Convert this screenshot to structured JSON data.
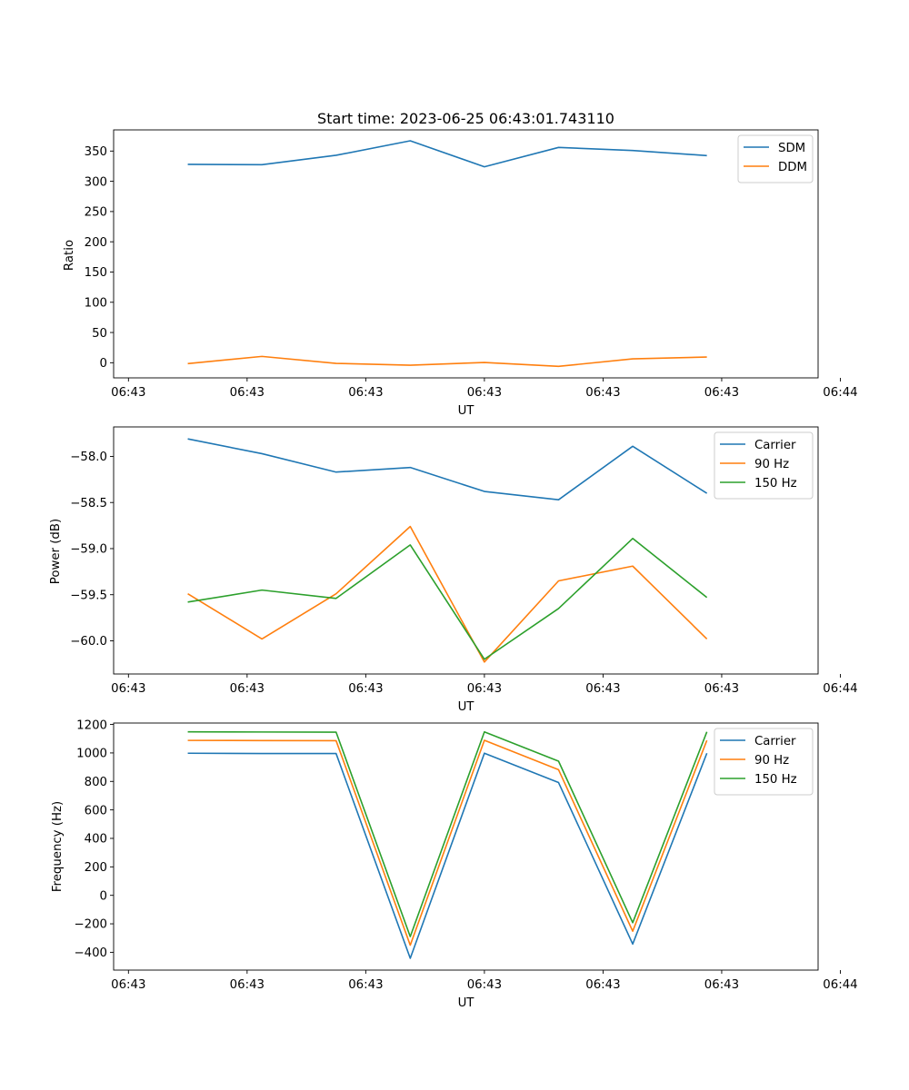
{
  "colors": {
    "blue": "#1f77b4",
    "orange": "#ff7f0e",
    "green": "#2ca02c"
  },
  "chart_data": [
    {
      "type": "line",
      "title": "Start time: 2023-06-25 06:43:01.743110",
      "xlabel": "UT",
      "ylabel": "Ratio",
      "x": [
        1,
        2,
        3,
        4,
        5,
        6,
        7,
        8
      ],
      "xlim": [
        0,
        9.5
      ],
      "xticks": [
        0.2,
        1.8,
        3.4,
        5.0,
        6.6,
        8.2,
        9.8
      ],
      "xtick_labels": [
        "06:43",
        "06:43",
        "06:43",
        "06:43",
        "06:43",
        "06:43",
        "06:44"
      ],
      "ylim": [
        -25,
        385
      ],
      "yticks": [
        0,
        50,
        100,
        150,
        200,
        250,
        300,
        350
      ],
      "ytick_labels": [
        "0",
        "50",
        "100",
        "150",
        "200",
        "250",
        "300",
        "350"
      ],
      "legend_position": "top-right",
      "series": [
        {
          "name": "SDM",
          "color": "blue",
          "values": [
            328,
            327.5,
            343,
            367,
            324,
            356,
            351,
            342.5
          ]
        },
        {
          "name": "DDM",
          "color": "orange",
          "values": [
            -1.5,
            10.5,
            -1,
            -4,
            0.5,
            -6,
            6.5,
            9.5
          ]
        }
      ]
    },
    {
      "type": "line",
      "title": "",
      "xlabel": "UT",
      "ylabel": "Power (dB)",
      "x": [
        1,
        2,
        3,
        4,
        5,
        6,
        7,
        8
      ],
      "xlim": [
        0,
        9.5
      ],
      "xticks": [
        0.2,
        1.8,
        3.4,
        5.0,
        6.6,
        8.2,
        9.8
      ],
      "xtick_labels": [
        "06:43",
        "06:43",
        "06:43",
        "06:43",
        "06:43",
        "06:43",
        "06:44"
      ],
      "ylim": [
        -60.36,
        -57.68
      ],
      "yticks": [
        -60.0,
        -59.5,
        -59.0,
        -58.5,
        -58.0
      ],
      "ytick_labels": [
        "−60.0",
        "−59.5",
        "−59.0",
        "−58.5",
        "−58.0"
      ],
      "legend_position": "top-right",
      "series": [
        {
          "name": "Carrier",
          "color": "blue",
          "values": [
            -57.81,
            -57.97,
            -58.17,
            -58.12,
            -58.38,
            -58.47,
            -57.89,
            -58.4
          ]
        },
        {
          "name": "90 Hz",
          "color": "orange",
          "values": [
            -59.49,
            -59.98,
            -59.49,
            -58.76,
            -60.23,
            -59.35,
            -59.19,
            -59.98
          ]
        },
        {
          "name": "150 Hz",
          "color": "green",
          "values": [
            -59.58,
            -59.45,
            -59.54,
            -58.96,
            -60.2,
            -59.65,
            -58.89,
            -59.53
          ]
        }
      ]
    },
    {
      "type": "line",
      "title": "",
      "xlabel": "UT",
      "ylabel": "Frequency (Hz)",
      "x": [
        1,
        2,
        3,
        4,
        5,
        6,
        7,
        8
      ],
      "xlim": [
        0,
        9.5
      ],
      "xticks": [
        0.2,
        1.8,
        3.4,
        5.0,
        6.6,
        8.2,
        9.8
      ],
      "xtick_labels": [
        "06:43",
        "06:43",
        "06:43",
        "06:43",
        "06:43",
        "06:43",
        "06:44"
      ],
      "ylim": [
        -525,
        1210
      ],
      "yticks": [
        -400,
        -200,
        0,
        200,
        400,
        600,
        800,
        1000,
        1200
      ],
      "ytick_labels": [
        "−400",
        "−200",
        "0",
        "200",
        "400",
        "600",
        "800",
        "1000",
        "1200"
      ],
      "legend_position": "top-right",
      "series": [
        {
          "name": "Carrier",
          "color": "blue",
          "values": [
            998,
            996,
            996,
            -442,
            998,
            792,
            -342,
            998
          ]
        },
        {
          "name": "90 Hz",
          "color": "orange",
          "values": [
            1088,
            1087,
            1086,
            -350,
            1089,
            882,
            -252,
            1088
          ]
        },
        {
          "name": "150 Hz",
          "color": "green",
          "values": [
            1148,
            1147,
            1146,
            -290,
            1148,
            942,
            -192,
            1148
          ]
        }
      ]
    }
  ]
}
